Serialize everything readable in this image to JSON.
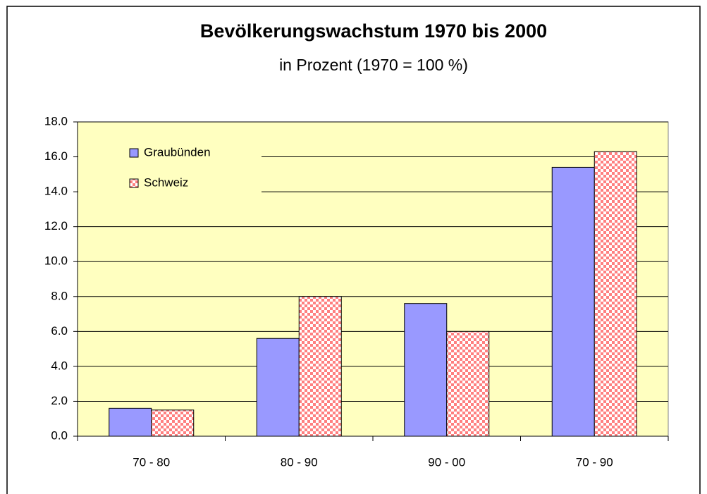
{
  "chart_data": {
    "type": "bar",
    "title": "Bevölkerungswachstum 1970 bis 2000",
    "subtitle": "in Prozent (1970 = 100 %)",
    "categories": [
      "70 - 80",
      "80 - 90",
      "90 - 00",
      "70 - 90"
    ],
    "series": [
      {
        "name": "Graubünden",
        "color": "#9999ff",
        "values": [
          1.6,
          5.6,
          7.6,
          15.4
        ]
      },
      {
        "name": "Schweiz",
        "color": "#ff8080",
        "pattern": "checkerboard",
        "values": [
          1.5,
          8.0,
          6.0,
          16.3
        ]
      }
    ],
    "ylim": [
      0,
      18
    ],
    "yticks": [
      {
        "value": 0,
        "label": "0.0"
      },
      {
        "value": 2,
        "label": "2.0"
      },
      {
        "value": 4,
        "label": "4.0"
      },
      {
        "value": 6,
        "label": "6.0"
      },
      {
        "value": 8,
        "label": "8.0"
      },
      {
        "value": 10,
        "label": "10.0"
      },
      {
        "value": 12,
        "label": "12.0"
      },
      {
        "value": 14,
        "label": "14.0"
      },
      {
        "value": 16,
        "label": "16.0"
      },
      {
        "value": 18,
        "label": "18.0"
      }
    ],
    "grid": true,
    "legend": "upper left",
    "plot_background": "#ffffc0"
  }
}
